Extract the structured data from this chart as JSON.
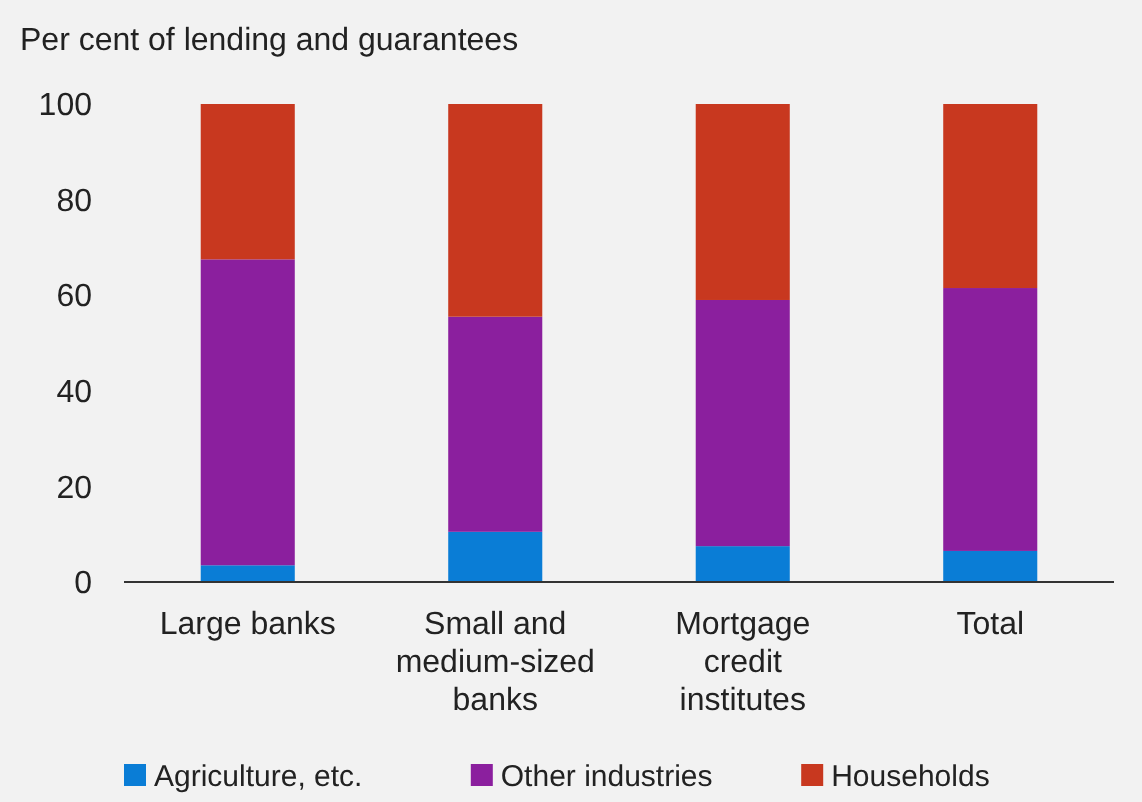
{
  "chart_data": {
    "type": "bar",
    "ylabel": "Per cent of lending and guarantees",
    "categories": [
      "Large banks",
      "Small and medium-sized banks",
      "Mortgage credit institutes",
      "Total"
    ],
    "stacked": true,
    "legend": "bottom",
    "ylim": [
      0,
      100
    ],
    "yticks": [
      0,
      20,
      40,
      60,
      80,
      100
    ],
    "series": [
      {
        "name": "Agriculture, etc.",
        "color": "#0a7dd6",
        "values": [
          3.5,
          10.5,
          7.5,
          6.5
        ]
      },
      {
        "name": "Other industries",
        "color": "#8b1f9e",
        "values": [
          64,
          45,
          51.5,
          55
        ]
      },
      {
        "name": "Households",
        "color": "#c8381f",
        "values": [
          32.5,
          44.5,
          41,
          38.5
        ]
      }
    ]
  }
}
